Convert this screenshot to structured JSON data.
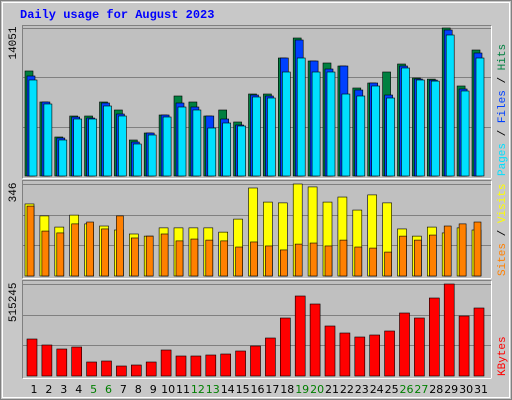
{
  "chart_data": {
    "type": "bar",
    "title": "Daily usage for August 2023",
    "categories": [
      "1",
      "2",
      "3",
      "4",
      "5",
      "6",
      "7",
      "8",
      "9",
      "10",
      "11",
      "12",
      "13",
      "14",
      "15",
      "16",
      "17",
      "18",
      "19",
      "20",
      "21",
      "22",
      "23",
      "24",
      "25",
      "26",
      "27",
      "28",
      "29",
      "30",
      "31"
    ],
    "category_colors": [
      "#000000",
      "#000000",
      "#000000",
      "#000000",
      "#007f00",
      "#007f00",
      "#000000",
      "#000000",
      "#000000",
      "#000000",
      "#000000",
      "#007f00",
      "#007f00",
      "#000000",
      "#000000",
      "#000000",
      "#000000",
      "#000000",
      "#007f00",
      "#007f00",
      "#000000",
      "#000000",
      "#000000",
      "#000000",
      "#000000",
      "#007f00",
      "#007f00",
      "#000000",
      "#000000",
      "#000000",
      "#000000"
    ],
    "legend_separator": " / ",
    "panels": [
      {
        "ylim": [
          0,
          14051
        ],
        "yticks": [
          14051
        ],
        "grid_lines": [
          4684,
          9367
        ],
        "series": [
          {
            "name": "Hits",
            "color": "#008040",
            "values": [
              9970,
              7026,
              3703,
              5696,
              5696,
              7026,
              6266,
              3418,
              4082,
              5791,
              7595,
              7026,
              5696,
              6266,
              5127,
              7785,
              7785,
              11203,
              13102,
              10918,
              10728,
              10443,
              8355,
              8829,
              9874,
              10633,
              9304,
              9200,
              14051,
              8545,
              11962
            ]
          },
          {
            "name": "Files",
            "color": "#0040ff",
            "values": [
              9495,
              7026,
              3608,
              5601,
              5506,
              6931,
              5886,
              3228,
              4082,
              5791,
              6930,
              6551,
              5696,
              5411,
              4842,
              7690,
              7595,
              11203,
              12912,
              10918,
              10158,
              10443,
              8165,
              8829,
              7689,
              10443,
              9209,
              9105,
              13861,
              8260,
              11677
            ]
          },
          {
            "name": "Pages",
            "color": "#00e0ff",
            "values": [
              9115,
              6836,
              3418,
              5411,
              5411,
              6646,
              5696,
              3038,
              3892,
              5601,
              6550,
              6266,
              4556,
              5031,
              4747,
              7500,
              7405,
              9873,
              11202,
              9873,
              9873,
              7783,
              7595,
              8544,
              7404,
              10253,
              9114,
              9010,
              13386,
              8070,
              11202
            ]
          }
        ]
      },
      {
        "ylim": [
          0,
          346
        ],
        "yticks": [
          346
        ],
        "grid_lines": [
          115,
          231
        ],
        "series": [
          {
            "name": "Visits",
            "color": "#ffff00",
            "values": [
              271,
              226,
              184,
              229,
              196,
              188,
              173,
              158,
              150,
              181,
              181,
              181,
              181,
              165,
              214,
              331,
              278,
              275,
              346,
              335,
              278,
              297,
              248,
              305,
              275,
              177,
              150,
              184,
              162,
              181,
              173
            ]
          },
          {
            "name": "Sites",
            "color": "#ff8000",
            "values": [
              263,
              169,
              162,
              196,
              203,
              177,
              226,
              143,
              150,
              158,
              132,
              139,
              135,
              132,
              109,
              128,
              113,
              98,
              120,
              124,
              113,
              135,
              109,
              105,
              90,
              150,
              135,
              154,
              188,
              196,
              203
            ]
          }
        ]
      },
      {
        "ylim": [
          0,
          515245
        ],
        "yticks": [
          515245
        ],
        "grid_lines": [
          171748,
          343497
        ],
        "series": [
          {
            "name": "KBytes",
            "color": "#ff0000",
            "values": [
              207219,
              173616,
              151214,
              162415,
              78407,
              84008,
              56005,
              61606,
              78407,
              145613,
              112010,
              112010,
              117611,
              123211,
              140013,
              168015,
              212819,
              324829,
              448040,
              403236,
              280025,
              240822,
              218420,
              229621,
              252023,
              352832,
              324829,
              436839,
              515245,
              336030,
              380834
            ]
          }
        ]
      }
    ]
  }
}
